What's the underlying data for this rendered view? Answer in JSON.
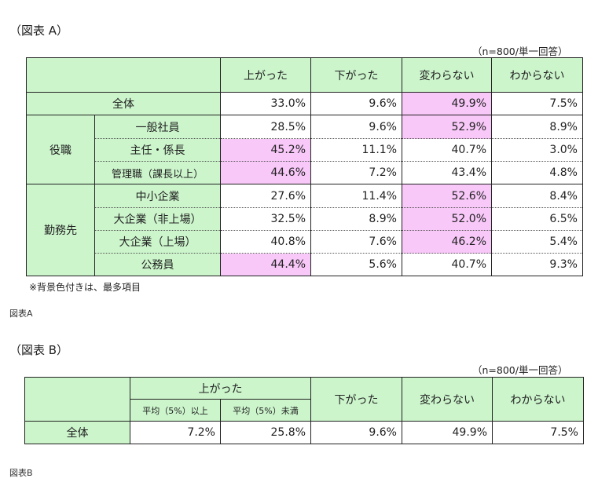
{
  "tableA": {
    "title": "（図表 A）",
    "note_n": "（n=800/単一回答）",
    "headers": [
      "上がった",
      "下がった",
      "変わらない",
      "わからない"
    ],
    "groups": {
      "position": "役職",
      "employer": "勤務先"
    },
    "rows": [
      {
        "label": "全体",
        "values": [
          "33.0%",
          "9.6%",
          "49.9%",
          "7.5%"
        ]
      },
      {
        "label": "一般社員",
        "values": [
          "28.5%",
          "9.6%",
          "52.9%",
          "8.9%"
        ]
      },
      {
        "label": "主任・係長",
        "values": [
          "45.2%",
          "11.1%",
          "40.7%",
          "3.0%"
        ]
      },
      {
        "label": "管理職（課長以上）",
        "values": [
          "44.6%",
          "7.2%",
          "43.4%",
          "4.8%"
        ]
      },
      {
        "label": "中小企業",
        "values": [
          "27.6%",
          "11.4%",
          "52.6%",
          "8.4%"
        ]
      },
      {
        "label": "大企業（非上場）",
        "values": [
          "32.5%",
          "8.9%",
          "52.0%",
          "6.5%"
        ]
      },
      {
        "label": "大企業（上場）",
        "values": [
          "40.8%",
          "7.6%",
          "46.2%",
          "5.4%"
        ]
      },
      {
        "label": "公務員",
        "values": [
          "44.4%",
          "5.6%",
          "40.7%",
          "9.3%"
        ]
      }
    ],
    "footnote": "※背景色付きは、最多項目",
    "caption": "図表A"
  },
  "tableB": {
    "title": "（図表 B）",
    "note_n": "（n=800/単一回答）",
    "headers": [
      "上がった",
      "下がった",
      "変わらない",
      "わからない"
    ],
    "subheaders": [
      "平均（5%）以上",
      "平均（5%）未満"
    ],
    "row_label": "全体",
    "values": [
      "7.2%",
      "25.8%",
      "9.6%",
      "49.9%",
      "7.5%"
    ],
    "caption": "図表B"
  },
  "colors": {
    "header_green": "#ccf5cc",
    "highlight_pink": "#f8c8f8"
  }
}
